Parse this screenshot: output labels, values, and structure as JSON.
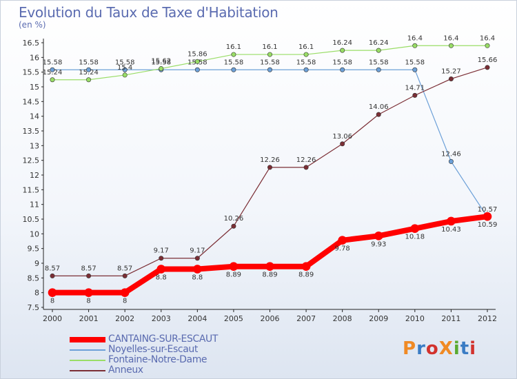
{
  "chart_data": {
    "type": "line",
    "title": "Evolution du Taux de Taxe d'Habitation",
    "unit_label": "(en %)",
    "x": [
      "2000",
      "2001",
      "2002",
      "2003",
      "2004",
      "2005",
      "2006",
      "2007",
      "2008",
      "2009",
      "2010",
      "2011",
      "2012"
    ],
    "ylim": [
      7.5,
      16.5
    ],
    "yticks": [
      "7.5",
      "8",
      "8.5",
      "9",
      "9.5",
      "10",
      "10.5",
      "11",
      "11.5",
      "12",
      "12.5",
      "13",
      "13.5",
      "14",
      "14.5",
      "15",
      "15.5",
      "16",
      "16.5"
    ],
    "grid": false,
    "legend_position": "bottom-left",
    "series": [
      {
        "name": "CANTAING-SUR-ESCAUT",
        "color": "#ff0000",
        "values": [
          8,
          8,
          8,
          8.8,
          8.8,
          8.89,
          8.89,
          8.89,
          9.78,
          9.93,
          10.18,
          10.43,
          10.59
        ],
        "labels": [
          "8",
          "8",
          "8",
          "8.8",
          "8.8",
          "8.89",
          "8.89",
          "8.89",
          "9.78",
          "9.93",
          "10.18",
          "10.43",
          "10.59"
        ]
      },
      {
        "name": "Noyelles-sur-Escaut",
        "color": "#6ca0d8",
        "values": [
          15.58,
          15.58,
          15.58,
          15.58,
          15.58,
          15.58,
          15.58,
          15.58,
          15.58,
          15.58,
          15.58,
          12.46,
          10.57
        ],
        "labels": [
          "15.58",
          "15.58",
          "15.58",
          "15.58",
          "15.58",
          "15.58",
          "15.58",
          "15.58",
          "15.58",
          "15.58",
          "15.58",
          "12.46",
          "10.57"
        ]
      },
      {
        "name": "Fontaine-Notre-Dame",
        "color": "#99dd66",
        "values": [
          15.24,
          15.24,
          15.4,
          15.62,
          15.86,
          16.1,
          16.1,
          16.1,
          16.24,
          16.24,
          16.4,
          16.4,
          16.4
        ],
        "labels": [
          "15.24",
          "15.24",
          "15.4",
          "15.62",
          "15.86",
          "16.1",
          "16.1",
          "16.1",
          "16.24",
          "16.24",
          "16.4",
          "16.4",
          "16.4"
        ]
      },
      {
        "name": "Anneux",
        "color": "#7b2e35",
        "values": [
          8.57,
          8.57,
          8.57,
          9.17,
          9.17,
          10.26,
          12.26,
          12.26,
          13.06,
          14.06,
          14.71,
          15.27,
          15.66
        ],
        "labels": [
          "8.57",
          "8.57",
          "8.57",
          "9.17",
          "9.17",
          "10.26",
          "12.26",
          "12.26",
          "13.06",
          "14.06",
          "14.71",
          "15.27",
          "15.66"
        ]
      }
    ]
  },
  "logo": {
    "text": "ProXiti",
    "colors": [
      "#f08a24",
      "#3a7cc4",
      "#d2322d",
      "#f08a24",
      "#5aaa32",
      "#3a7cc4",
      "#d2322d"
    ]
  }
}
